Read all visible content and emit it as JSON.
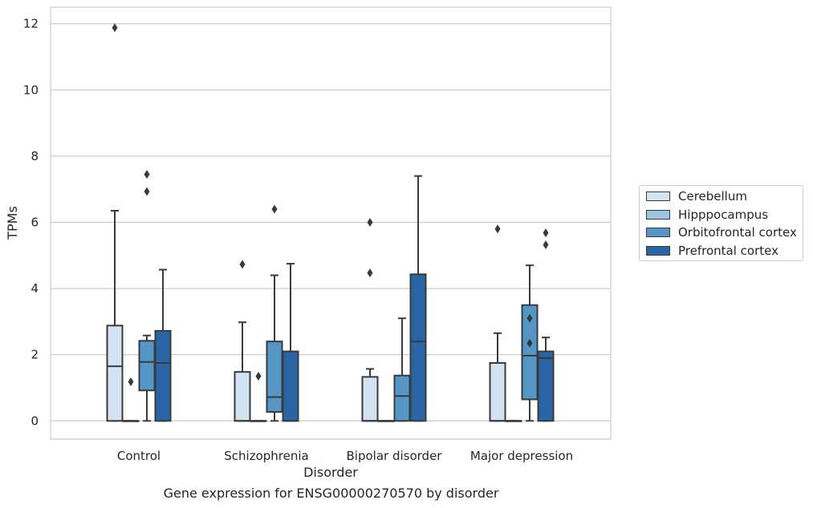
{
  "chart_data": {
    "type": "box",
    "title": "",
    "caption": "Gene expression for ENSG00000270570 by disorder",
    "xlabel": "Disorder",
    "ylabel": "TPMs",
    "ylim": [
      -0.55,
      12.5
    ],
    "yticks": [
      0,
      2,
      4,
      6,
      8,
      10,
      12
    ],
    "grid": "horizontal",
    "legend_position": "right",
    "categories": [
      "Control",
      "Schizophrenia",
      "Bipolar disorder",
      "Major depression"
    ],
    "series": [
      {
        "name": "Cerebellum",
        "color": "#d4e3f2",
        "boxes": [
          {
            "q1": 0,
            "median": 1.65,
            "q3": 2.88,
            "whisker_low": 0,
            "whisker_high": 6.35,
            "outliers": [
              11.88
            ]
          },
          {
            "q1": 0,
            "median": 0,
            "q3": 1.48,
            "whisker_low": 0,
            "whisker_high": 2.98,
            "outliers": [
              4.73
            ]
          },
          {
            "q1": 0,
            "median": 0,
            "q3": 1.33,
            "whisker_low": 0,
            "whisker_high": 1.57,
            "outliers": [
              4.47,
              6.0
            ]
          },
          {
            "q1": 0,
            "median": 0,
            "q3": 1.75,
            "whisker_low": 0,
            "whisker_high": 2.65,
            "outliers": [
              5.8
            ]
          }
        ]
      },
      {
        "name": "Hipppocampus",
        "color": "#9cc4e0",
        "boxes": [
          {
            "q1": 0,
            "median": 0,
            "q3": 0,
            "whisker_low": 0,
            "whisker_high": 0,
            "outliers": [
              1.18
            ]
          },
          {
            "q1": 0,
            "median": 0,
            "q3": 0,
            "whisker_low": 0,
            "whisker_high": 0,
            "outliers": [
              1.35
            ]
          },
          {
            "q1": 0,
            "median": 0,
            "q3": 0,
            "whisker_low": 0,
            "whisker_high": 0,
            "outliers": []
          },
          {
            "q1": 0,
            "median": 0,
            "q3": 0,
            "whisker_low": 0,
            "whisker_high": 0,
            "outliers": []
          }
        ]
      },
      {
        "name": "Orbitofrontal cortex",
        "color": "#5497c6",
        "boxes": [
          {
            "q1": 0.92,
            "median": 1.78,
            "q3": 2.42,
            "whisker_low": 0,
            "whisker_high": 2.58,
            "outliers": [
              6.93,
              7.45
            ]
          },
          {
            "q1": 0.27,
            "median": 0.72,
            "q3": 2.4,
            "whisker_low": 0,
            "whisker_high": 4.4,
            "outliers": [
              6.4
            ]
          },
          {
            "q1": 0,
            "median": 0.75,
            "q3": 1.37,
            "whisker_low": 0,
            "whisker_high": 3.1,
            "outliers": []
          },
          {
            "q1": 0.65,
            "median": 1.97,
            "q3": 3.5,
            "whisker_low": 0,
            "whisker_high": 4.7,
            "outliers": [
              2.35,
              3.1
            ]
          }
        ]
      },
      {
        "name": "Prefrontal cortex",
        "color": "#2a66a6",
        "boxes": [
          {
            "q1": 0,
            "median": 1.75,
            "q3": 2.72,
            "whisker_low": 0,
            "whisker_high": 4.57,
            "outliers": []
          },
          {
            "q1": 0,
            "median": 0,
            "q3": 2.1,
            "whisker_low": 0,
            "whisker_high": 4.75,
            "outliers": []
          },
          {
            "q1": 0,
            "median": 2.4,
            "q3": 4.43,
            "whisker_low": 0,
            "whisker_high": 7.4,
            "outliers": []
          },
          {
            "q1": 0,
            "median": 1.9,
            "q3": 2.1,
            "whisker_low": 0,
            "whisker_high": 2.52,
            "outliers": [
              5.32,
              5.68
            ]
          }
        ]
      }
    ]
  }
}
